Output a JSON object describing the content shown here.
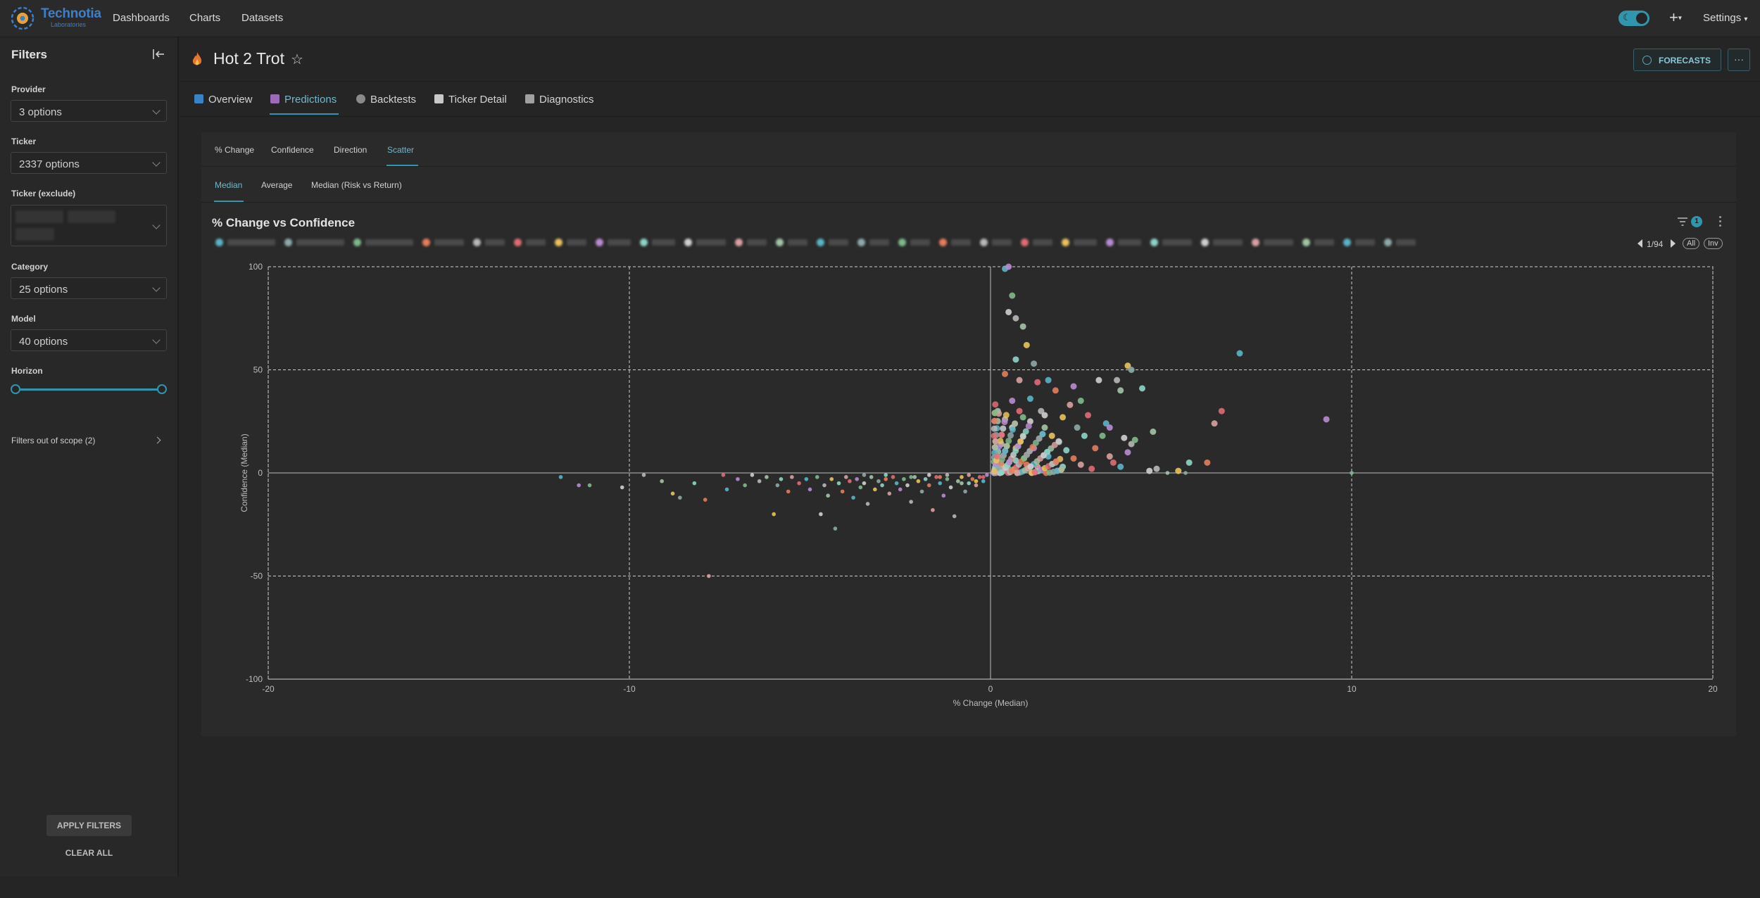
{
  "nav": {
    "logo_text": "Technotia",
    "logo_sub": "Laboratories",
    "links": [
      "Dashboards",
      "Charts",
      "Datasets"
    ],
    "plus": "+",
    "settings": "Settings"
  },
  "sidebar": {
    "title": "Filters",
    "filters": [
      {
        "label": "Provider",
        "value": "3 options"
      },
      {
        "label": "Ticker",
        "value": "2337 options"
      },
      {
        "label": "Ticker (exclude)",
        "value": ""
      },
      {
        "label": "Category",
        "value": "25 options"
      },
      {
        "label": "Model",
        "value": "40 options"
      },
      {
        "label": "Horizon",
        "value": ""
      }
    ],
    "out_of_scope": "Filters out of scope (2)",
    "apply": "APPLY FILTERS",
    "clear": "CLEAR ALL"
  },
  "header": {
    "title": "Hot 2 Trot",
    "forecasts": "FORECASTS",
    "more": "···"
  },
  "tabs": [
    "Overview",
    "Predictions",
    "Backtests",
    "Ticker Detail",
    "Diagnostics"
  ],
  "subtabs": [
    "% Change",
    "Confidence",
    "Direction",
    "Scatter"
  ],
  "subtabs2": [
    "Median",
    "Average",
    "Median (Risk vs Return)"
  ],
  "chart_header": {
    "title": "% Change vs Confidence",
    "filter_count": "1",
    "pager": "1/94",
    "all": "All",
    "inv": "Inv"
  },
  "colors": {
    "accent": "#2f96ad",
    "palette": [
      "#5ab4c5",
      "#8fa9a9",
      "#7fb98a",
      "#e67c5c",
      "#b8b8b8",
      "#e06c75",
      "#e8c35a",
      "#b98bd1",
      "#8fd3c7",
      "#cfcfcf",
      "#d9a1a1",
      "#a3c4a6"
    ]
  },
  "chart_data": {
    "type": "scatter",
    "title": "% Change vs Confidence",
    "xlabel": "% Change (Median)",
    "ylabel": "Confidence (Median)",
    "xlim": [
      -20,
      20
    ],
    "ylim": [
      -100,
      100
    ],
    "xticks": [
      -20,
      -10,
      0,
      10,
      20
    ],
    "yticks": [
      -100,
      -50,
      0,
      50,
      100
    ],
    "grid": true,
    "points": [
      [
        -11.9,
        -2
      ],
      [
        -11.4,
        -6
      ],
      [
        -11.1,
        -6
      ],
      [
        -10.2,
        -7
      ],
      [
        -9.6,
        -1
      ],
      [
        -9.1,
        -4
      ],
      [
        -8.8,
        -10
      ],
      [
        -8.6,
        -12
      ],
      [
        -8.2,
        -5
      ],
      [
        -7.9,
        -13
      ],
      [
        -7.8,
        -50
      ],
      [
        -7.4,
        -1
      ],
      [
        -7.3,
        -8
      ],
      [
        -7.0,
        -3
      ],
      [
        -6.8,
        -6
      ],
      [
        -6.6,
        -1
      ],
      [
        -6.4,
        -4
      ],
      [
        -6.2,
        -2
      ],
      [
        -6.0,
        -20
      ],
      [
        -5.9,
        -6
      ],
      [
        -5.8,
        -3
      ],
      [
        -5.6,
        -9
      ],
      [
        -5.5,
        -2
      ],
      [
        -5.3,
        -5
      ],
      [
        -5.1,
        -3
      ],
      [
        -5.0,
        -8
      ],
      [
        -4.8,
        -2
      ],
      [
        -4.7,
        -20
      ],
      [
        -4.6,
        -6
      ],
      [
        -4.5,
        -11
      ],
      [
        -4.4,
        -3
      ],
      [
        -4.3,
        -27
      ],
      [
        -4.2,
        -5
      ],
      [
        -4.1,
        -9
      ],
      [
        -4.0,
        -2
      ],
      [
        -3.9,
        -4
      ],
      [
        -3.8,
        -12
      ],
      [
        -3.7,
        -3
      ],
      [
        -3.6,
        -7
      ],
      [
        -3.5,
        -5
      ],
      [
        -3.4,
        -15
      ],
      [
        -3.3,
        -2
      ],
      [
        -3.2,
        -8
      ],
      [
        -3.1,
        -4
      ],
      [
        -3.0,
        -6
      ],
      [
        -2.9,
        -3
      ],
      [
        -2.8,
        -10
      ],
      [
        -2.7,
        -2
      ],
      [
        -2.6,
        -5
      ],
      [
        -2.5,
        -8
      ],
      [
        -2.4,
        -3
      ],
      [
        -2.3,
        -6
      ],
      [
        -2.2,
        -14
      ],
      [
        -2.1,
        -2
      ],
      [
        -2.0,
        -4
      ],
      [
        -1.9,
        -9
      ],
      [
        -1.8,
        -3
      ],
      [
        -1.7,
        -6
      ],
      [
        -1.6,
        -18
      ],
      [
        -1.5,
        -2
      ],
      [
        -1.4,
        -5
      ],
      [
        -1.3,
        -11
      ],
      [
        -1.2,
        -3
      ],
      [
        -1.1,
        -7
      ],
      [
        -1.0,
        -21
      ],
      [
        -0.9,
        -4
      ],
      [
        -0.8,
        -2
      ],
      [
        -0.7,
        -9
      ],
      [
        -0.6,
        -5
      ],
      [
        -0.5,
        -3
      ],
      [
        -0.4,
        -6
      ],
      [
        -0.3,
        -2
      ],
      [
        -0.2,
        -4
      ],
      [
        -0.1,
        -1
      ],
      [
        -2.2,
        -2
      ],
      [
        -1.7,
        -1
      ],
      [
        -1.2,
        -1
      ],
      [
        -0.8,
        -5
      ],
      [
        -0.4,
        -4
      ],
      [
        -3.5,
        -1
      ],
      [
        -2.9,
        -1
      ],
      [
        -1.4,
        -2
      ],
      [
        -0.6,
        -1
      ],
      [
        -0.2,
        -2
      ],
      [
        0.4,
        99
      ],
      [
        0.5,
        100
      ],
      [
        0.6,
        86
      ],
      [
        0.5,
        78
      ],
      [
        0.7,
        75
      ],
      [
        0.9,
        71
      ],
      [
        1.0,
        62
      ],
      [
        1.2,
        53
      ],
      [
        0.7,
        55
      ],
      [
        0.4,
        48
      ],
      [
        0.8,
        45
      ],
      [
        1.3,
        44
      ],
      [
        1.6,
        45
      ],
      [
        2.3,
        42
      ],
      [
        2.5,
        35
      ],
      [
        3.0,
        45
      ],
      [
        3.5,
        45
      ],
      [
        3.6,
        40
      ],
      [
        3.8,
        52
      ],
      [
        3.9,
        50
      ],
      [
        4.2,
        41
      ],
      [
        1.8,
        40
      ],
      [
        2.2,
        33
      ],
      [
        2.7,
        28
      ],
      [
        3.2,
        24
      ],
      [
        3.3,
        22
      ],
      [
        3.1,
        18
      ],
      [
        3.7,
        17
      ],
      [
        3.9,
        14
      ],
      [
        4.5,
        20
      ],
      [
        2.0,
        27
      ],
      [
        2.4,
        22
      ],
      [
        2.6,
        18
      ],
      [
        2.9,
        12
      ],
      [
        3.3,
        8
      ],
      [
        3.4,
        5
      ],
      [
        3.6,
        3
      ],
      [
        3.8,
        10
      ],
      [
        4.0,
        16
      ],
      [
        4.4,
        1
      ],
      [
        4.6,
        2
      ],
      [
        4.9,
        0
      ],
      [
        5.2,
        1
      ],
      [
        5.4,
        0
      ],
      [
        5.5,
        5
      ],
      [
        6.0,
        5
      ],
      [
        6.2,
        24
      ],
      [
        6.4,
        30
      ],
      [
        6.9,
        58
      ],
      [
        9.3,
        26
      ],
      [
        10.0,
        0
      ],
      [
        1.1,
        25
      ],
      [
        1.4,
        30
      ],
      [
        1.5,
        22
      ],
      [
        1.7,
        18
      ],
      [
        1.9,
        15
      ],
      [
        2.1,
        11
      ],
      [
        2.3,
        7
      ],
      [
        2.5,
        4
      ],
      [
        2.8,
        2
      ],
      [
        1.6,
        8
      ],
      [
        1.2,
        12
      ],
      [
        0.9,
        18
      ],
      [
        0.6,
        22
      ],
      [
        0.3,
        14
      ],
      [
        0.2,
        8
      ],
      [
        0.3,
        4
      ],
      [
        0.5,
        2
      ],
      [
        0.7,
        6
      ],
      [
        1.0,
        4
      ],
      [
        1.3,
        3
      ],
      [
        0.8,
        30
      ],
      [
        1.1,
        36
      ],
      [
        0.6,
        35
      ],
      [
        0.9,
        27
      ],
      [
        1.5,
        28
      ],
      [
        0.4,
        26
      ],
      [
        0.2,
        30
      ],
      [
        0.7,
        12
      ],
      [
        1.8,
        5
      ],
      [
        2.0,
        3
      ]
    ]
  }
}
